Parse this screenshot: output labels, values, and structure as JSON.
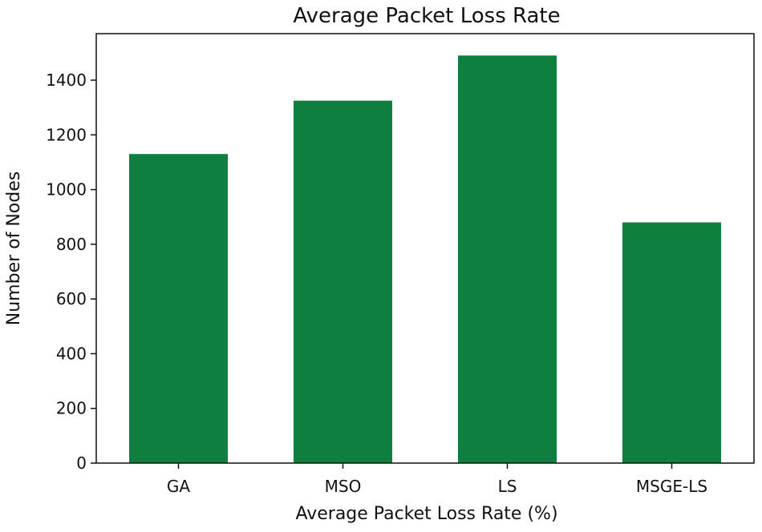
{
  "chart_data": {
    "type": "bar",
    "title": "Average Packet Loss Rate",
    "xlabel": "Average Packet Loss Rate (%)",
    "ylabel": "Number of Nodes",
    "categories": [
      "GA",
      "MSO",
      "LS",
      "MSGE-LS"
    ],
    "values": [
      1130,
      1325,
      1490,
      880
    ],
    "ylim": [
      0,
      1570
    ],
    "yticks": [
      0,
      200,
      400,
      600,
      800,
      1000,
      1200,
      1400
    ],
    "bar_color": "#0e7f3e",
    "grid": false,
    "legend": "none"
  }
}
